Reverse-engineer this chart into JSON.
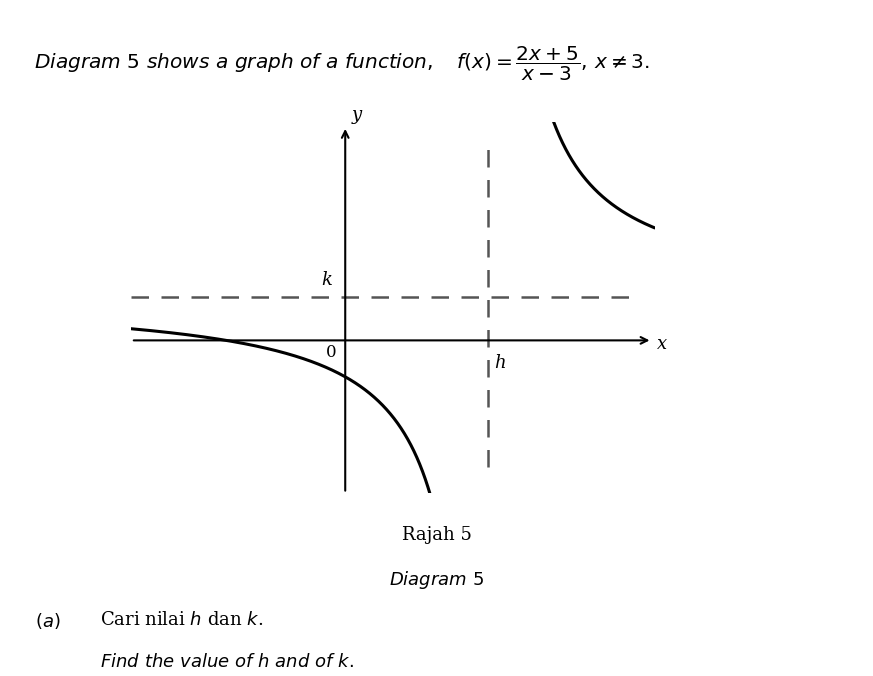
{
  "vertical_asymptote": 3,
  "horizontal_asymptote": 2,
  "x_label": "x",
  "y_label": "y",
  "h_label": "h",
  "k_label": "k",
  "origin_label": "0",
  "rajah_text": "Rajah 5",
  "diagram_text": "Diagram 5",
  "part_a_malay": "Cari nilai $\\it{h}$ dan $\\it{k}$.",
  "part_a_english": "$\\it{Find\\ the\\ value\\ of\\ h\\ and\\ of\\ k.}$",
  "part_a_prefix": "$(a)$",
  "curve_color": "#000000",
  "dashed_color": "#555555",
  "background_color": "#ffffff",
  "graph_xlim": [
    -4.5,
    6.5
  ],
  "graph_ylim": [
    -7,
    10
  ],
  "lw_curve": 2.2,
  "lw_axis": 1.5,
  "lw_dash": 1.8
}
